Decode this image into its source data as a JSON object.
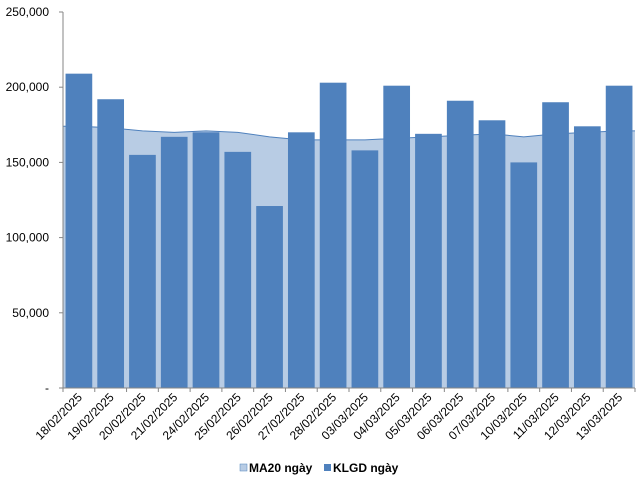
{
  "chart_data": {
    "type": "bar",
    "title": "",
    "xlabel": "",
    "ylabel": "",
    "ylim": [
      0,
      250000
    ],
    "yticks": [
      0,
      50000,
      100000,
      150000,
      200000,
      250000
    ],
    "ytick_labels": [
      "-",
      "50,000",
      "100,000",
      "150,000",
      "200,000",
      "250,000"
    ],
    "grid": false,
    "legend_position": "bottom",
    "categories": [
      "18/02/2025",
      "19/02/2025",
      "20/02/2025",
      "21/02/2025",
      "24/02/2025",
      "25/02/2025",
      "26/02/2025",
      "27/02/2025",
      "28/02/2025",
      "03/03/2025",
      "04/03/2025",
      "05/03/2025",
      "06/03/2025",
      "07/03/2025",
      "10/03/2025",
      "11/03/2025",
      "12/03/2025",
      "13/03/2025"
    ],
    "series": [
      {
        "name": "MA20 ngày",
        "kind": "area",
        "color": "#b8cce4",
        "line_color": "#4f81bd",
        "values": [
          174000,
          173000,
          171000,
          170000,
          171000,
          170000,
          167000,
          165000,
          165000,
          165000,
          166000,
          167000,
          168000,
          169000,
          167000,
          169000,
          170000,
          171000
        ]
      },
      {
        "name": "KLGD ngày",
        "kind": "bar",
        "color": "#4f81bd",
        "values": [
          209000,
          192000,
          155000,
          167000,
          170000,
          157000,
          121000,
          170000,
          203000,
          158000,
          201000,
          169000,
          191000,
          178000,
          150000,
          190000,
          174000,
          201000
        ]
      }
    ]
  }
}
